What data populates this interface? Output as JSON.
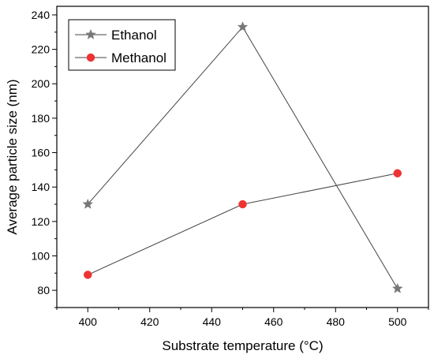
{
  "chart_data": {
    "type": "line",
    "xlabel": "Substrate temperature (°C)",
    "ylabel": "Average particle size (nm)",
    "xlim": [
      390,
      510
    ],
    "ylim": [
      70,
      245
    ],
    "xticks": [
      400,
      420,
      440,
      460,
      480,
      500
    ],
    "yticks": [
      80,
      100,
      120,
      140,
      160,
      180,
      200,
      220,
      240
    ],
    "grid": false,
    "legend_position": "top-left",
    "series": [
      {
        "name": "Ethanol",
        "marker": "star",
        "color": "#777777",
        "x": [
          400,
          450,
          500
        ],
        "y": [
          130,
          233,
          81
        ]
      },
      {
        "name": "Methanol",
        "marker": "circle",
        "color": "#ee3333",
        "x": [
          400,
          450,
          500
        ],
        "y": [
          89,
          130,
          148
        ]
      }
    ]
  }
}
